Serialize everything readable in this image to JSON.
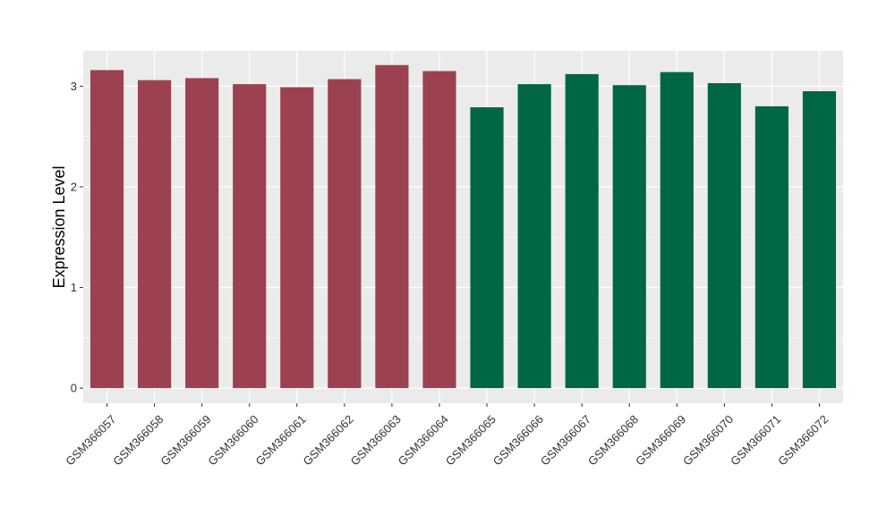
{
  "chart_data": {
    "type": "bar",
    "title": "",
    "xlabel": "",
    "ylabel": "Expression Level",
    "ylim": [
      -0.15,
      3.35
    ],
    "yticks": [
      0,
      1,
      2,
      3
    ],
    "grid": true,
    "legend": "none",
    "categories": [
      "GSM366057",
      "GSM366058",
      "GSM366059",
      "GSM366060",
      "GSM366061",
      "GSM366062",
      "GSM366063",
      "GSM366064",
      "GSM366065",
      "GSM366066",
      "GSM366067",
      "GSM366068",
      "GSM366069",
      "GSM366070",
      "GSM366071",
      "GSM366072"
    ],
    "values": [
      3.16,
      3.06,
      3.08,
      3.02,
      2.99,
      3.07,
      3.21,
      3.15,
      2.79,
      3.02,
      3.12,
      3.01,
      3.14,
      3.03,
      2.8,
      2.95
    ],
    "bar_colors": [
      "#9b4150",
      "#9b4150",
      "#9b4150",
      "#9b4150",
      "#9b4150",
      "#9b4150",
      "#9b4150",
      "#9b4150",
      "#006644",
      "#006644",
      "#006644",
      "#006644",
      "#006644",
      "#006644",
      "#006644",
      "#006644"
    ],
    "panel_background": "#ebebeb",
    "gridline_color": "#ffffff"
  }
}
